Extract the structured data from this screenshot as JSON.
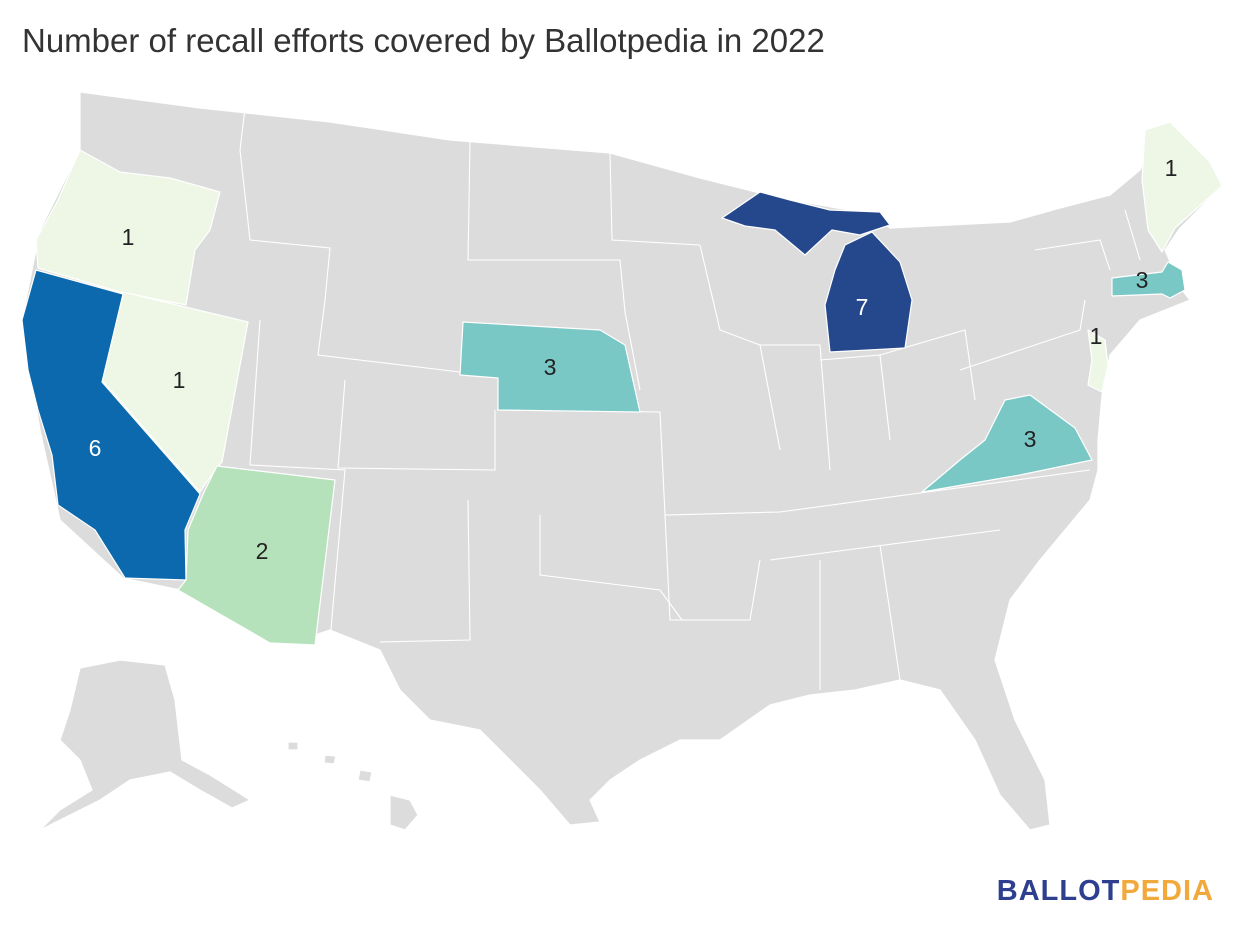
{
  "title": "Number of recall efforts covered by Ballotpedia in 2022",
  "logo": {
    "part1": "BALLOT",
    "part2": "PEDIA"
  },
  "colors": {
    "base": "#dcdcdc",
    "scale": {
      "1": "#eef7e6",
      "2": "#b6e2bb",
      "3": "#79c8c6",
      "6": "#0c69ad",
      "7": "#25488d"
    }
  },
  "chart_data": {
    "type": "choropleth",
    "regions": [
      {
        "name": "Oregon",
        "value": 1
      },
      {
        "name": "Nevada",
        "value": 1
      },
      {
        "name": "California",
        "value": 6
      },
      {
        "name": "Arizona",
        "value": 2
      },
      {
        "name": "Nebraska",
        "value": 3
      },
      {
        "name": "Michigan",
        "value": 7
      },
      {
        "name": "Virginia",
        "value": 3
      },
      {
        "name": "Massachusetts",
        "value": 3
      },
      {
        "name": "New Jersey",
        "value": 1
      },
      {
        "name": "Maine",
        "value": 1
      }
    ]
  }
}
